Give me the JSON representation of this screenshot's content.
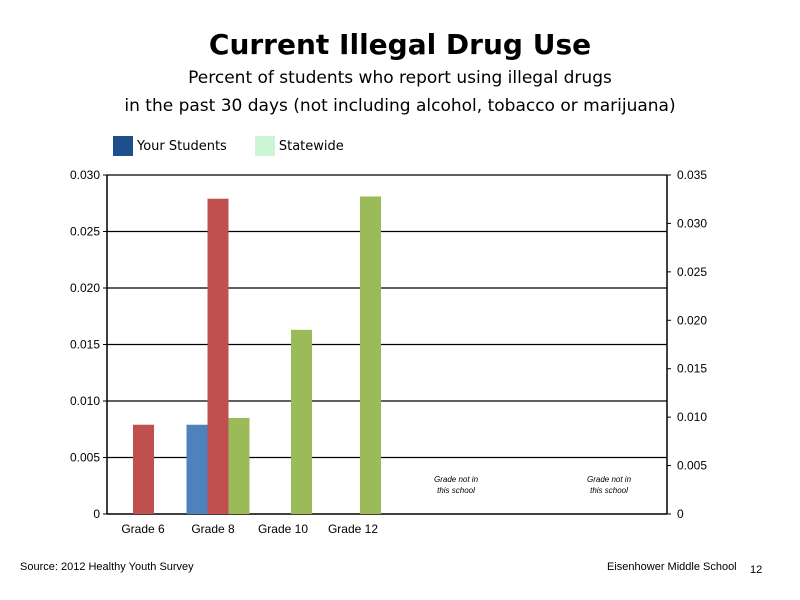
{
  "title": "Current Illegal Drug Use",
  "subtitle_line1": "Percent of students who report using illegal drugs",
  "subtitle_line2": "in the past 30 days (not including alcohol, tobacco or marijuana)",
  "legend": [
    {
      "label": "Your Students",
      "color": "#1f4e8c"
    },
    {
      "label": "Statewide",
      "color": "#ccf5d6"
    }
  ],
  "footer": {
    "source": "Source: 2012 Healthy Youth Survey",
    "school": "Eisenhower Middle  School",
    "page": "12"
  },
  "chart_data": {
    "type": "bar",
    "categories": [
      "Grade 6",
      "Grade 8",
      "Grade 10",
      "Grade 12"
    ],
    "left_axis": {
      "ylim": [
        0,
        0.03
      ],
      "ticks": [
        "0",
        "0.005",
        "0.010",
        "0.015",
        "0.020",
        "0.025",
        "0.030"
      ]
    },
    "right_axis": {
      "ylim": [
        0,
        0.035
      ],
      "ticks": [
        "0",
        "0.005",
        "0.010",
        "0.015",
        "0.020",
        "0.025",
        "0.030",
        "0.035"
      ]
    },
    "grid": true,
    "series": [
      {
        "color": "#4f81bd",
        "axis": "left",
        "values": [
          null,
          0.0079,
          null,
          null
        ]
      },
      {
        "color": "#c0504d",
        "axis": "left",
        "values": [
          0.0079,
          0.0279,
          null,
          null
        ]
      },
      {
        "color": "#9bbb59",
        "axis": "left",
        "values": [
          null,
          0.0085,
          0.0163,
          0.0281
        ]
      }
    ],
    "annotations": [
      {
        "lines": [
          "Grade not in",
          "this school"
        ]
      },
      {
        "lines": [
          "Grade not in",
          "this school"
        ]
      }
    ]
  }
}
